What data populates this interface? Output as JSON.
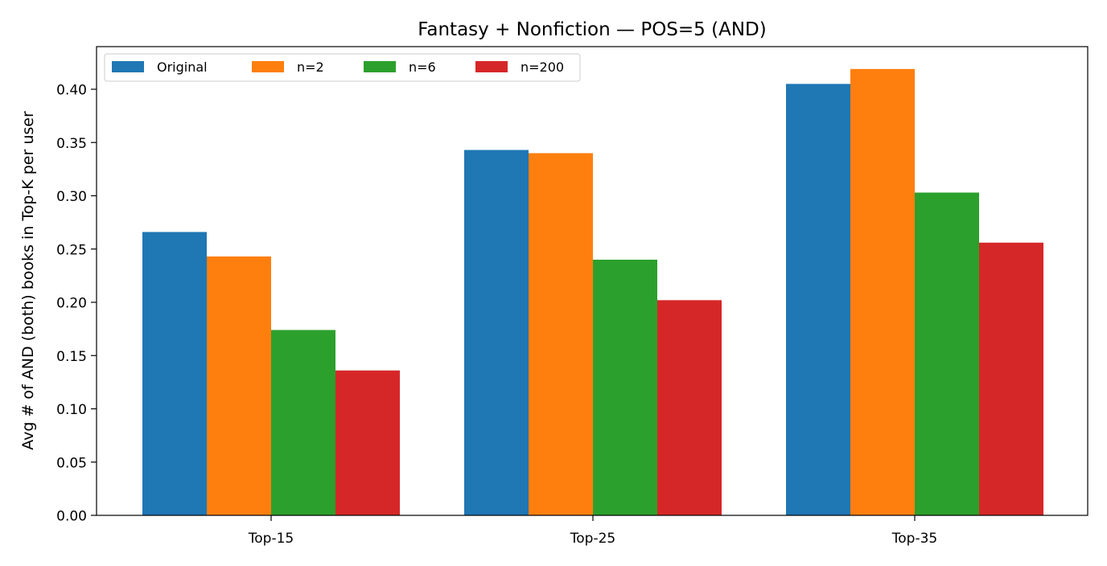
{
  "chart_data": {
    "type": "bar",
    "title": "Fantasy + Nonfiction — POS=5 (AND)",
    "xlabel": "",
    "ylabel": "Avg # of AND (both) books in Top-K per user",
    "categories": [
      "Top-15",
      "Top-25",
      "Top-35"
    ],
    "series": [
      {
        "name": "Original",
        "color": "#1f77b4",
        "values": [
          0.266,
          0.343,
          0.405
        ]
      },
      {
        "name": "n=2",
        "color": "#ff7f0e",
        "values": [
          0.243,
          0.34,
          0.419
        ]
      },
      {
        "name": "n=6",
        "color": "#2ca02c",
        "values": [
          0.174,
          0.24,
          0.303
        ]
      },
      {
        "name": "n=200",
        "color": "#d62728",
        "values": [
          0.136,
          0.202,
          0.256
        ]
      }
    ],
    "ylim": [
      0,
      0.44
    ],
    "yticks": [
      "0.00",
      "0.05",
      "0.10",
      "0.15",
      "0.20",
      "0.25",
      "0.30",
      "0.35",
      "0.40"
    ],
    "grid": false,
    "legend_position": "top-left"
  }
}
